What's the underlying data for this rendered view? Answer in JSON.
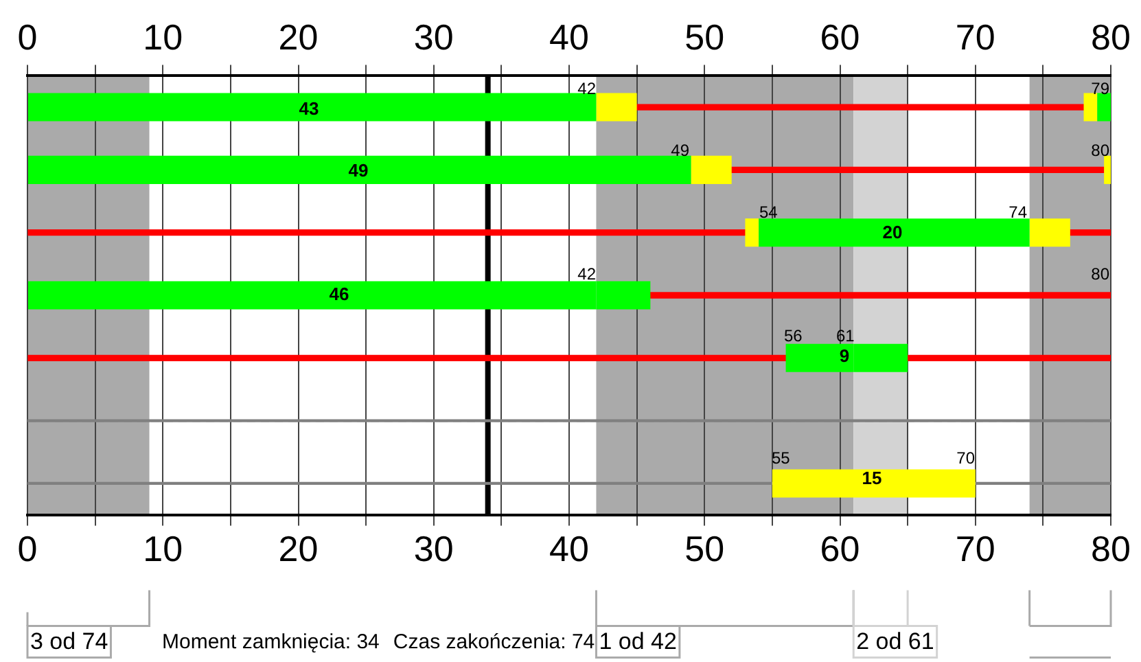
{
  "chart_data": {
    "type": "bar",
    "orientation": "horizontal",
    "categories": [
      null,
      null,
      null,
      null,
      null,
      null,
      null
    ],
    "xlim": [
      0,
      80
    ],
    "x2lim": [
      0,
      80
    ],
    "xticks": [
      0,
      {
        "value": 5,
        "label": null
      },
      10,
      {
        "value": 15,
        "label": null
      },
      20,
      {
        "value": 25,
        "label": null
      },
      30,
      {
        "value": 35,
        "label": null
      },
      40,
      {
        "value": 45,
        "label": null
      },
      50,
      {
        "value": 55,
        "label": null
      },
      60,
      {
        "value": 65,
        "label": null
      },
      70,
      {
        "value": 75,
        "label": null
      },
      80
    ],
    "x2ticks": [
      0,
      {
        "value": 5,
        "label": null
      },
      10,
      {
        "value": 15,
        "label": null
      },
      20,
      {
        "value": 25,
        "label": null
      },
      30,
      {
        "value": 35,
        "label": null
      },
      40,
      {
        "value": 45,
        "label": null
      },
      50,
      {
        "value": 55,
        "label": null
      },
      60,
      {
        "value": 65,
        "label": null
      },
      70,
      {
        "value": 75,
        "label": null
      },
      80
    ],
    "grid": "x",
    "legend": "bottom",
    "series": [
      {
        "color": "#808080",
        "line_style": "dashed",
        "base": [
          null,
          null,
          null,
          null,
          null,
          0,
          0
        ],
        "values": [
          null,
          null,
          null,
          null,
          null,
          80,
          80
        ]
      },
      {
        "color": "#ff0000",
        "line_style": "solid",
        "base": [
          45,
          52,
          0,
          46,
          0,
          null,
          null
        ],
        "values": [
          33,
          27.5,
          53,
          34,
          56,
          null,
          null
        ]
      },
      {
        "color": "#ff0000",
        "line_style": "solid",
        "base": [
          null,
          null,
          77,
          null,
          65,
          null,
          null
        ],
        "values": [
          null,
          null,
          3,
          null,
          15,
          null,
          null
        ]
      },
      {
        "color": "#00ff00",
        "base": [
          0,
          0,
          54,
          0,
          56,
          null,
          null
        ],
        "values": [
          42,
          49,
          20,
          42,
          5,
          null,
          null
        ]
      },
      {
        "color": "#00ff00",
        "base": [
          79,
          null,
          null,
          null,
          null,
          null,
          null
        ],
        "values": [
          1,
          null,
          null,
          null,
          null,
          null,
          null
        ]
      },
      {
        "color": "#ffff00",
        "base": [
          42,
          49,
          74,
          null,
          null,
          null,
          55
        ],
        "values": [
          3,
          3,
          3,
          null,
          null,
          null,
          15
        ]
      },
      {
        "color": "#ffff00",
        "base": [
          78,
          79.5,
          53,
          null,
          null,
          null,
          null
        ],
        "values": [
          1,
          0.5,
          1,
          null,
          null,
          null,
          null
        ]
      },
      {
        "color": "#00ff00",
        "base": [
          null,
          null,
          null,
          42,
          61,
          null,
          null
        ],
        "values": [
          null,
          null,
          null,
          4,
          4,
          null,
          null
        ]
      }
    ],
    "bands": [
      {
        "axis": "x",
        "from": 0,
        "to": 9,
        "label": "3 od 74",
        "color": "#aaaaaa"
      },
      {
        "axis": "x",
        "from": 42,
        "to": 61,
        "label": "1 od 42",
        "color": "#aaaaaa"
      },
      {
        "axis": "x",
        "from": 61,
        "to": 65,
        "label": "2 od 61",
        "color": "#d3d3d3"
      },
      {
        "axis": "x",
        "from": 74,
        "to": 80,
        "label": null,
        "color": "#aaaaaa"
      }
    ],
    "ref_lines": [
      {
        "axis": "x",
        "value": 34,
        "label": "Moment zamknięcia: 34",
        "color": "#000000"
      }
    ],
    "annotations": [
      "Czas zakończenia: 74",
      "43",
      "49",
      "20",
      "46",
      "9",
      "15",
      "42",
      "79",
      "49",
      "80",
      "54",
      "74",
      "42",
      "80",
      "56",
      "61",
      "55",
      "70"
    ]
  }
}
